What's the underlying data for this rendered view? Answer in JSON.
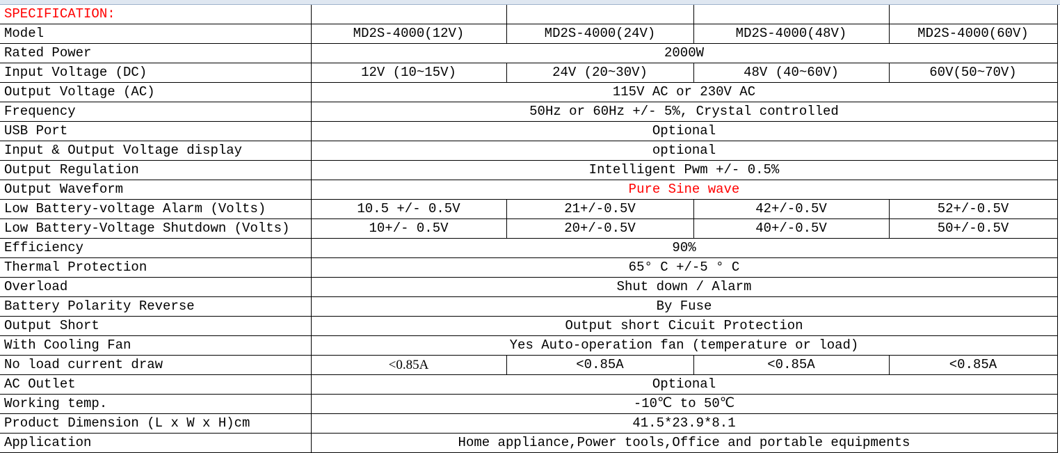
{
  "title": "SPECIFICATION:",
  "colors": {
    "title": "#ff0000",
    "highlight": "#ff0000",
    "grid": "#000000",
    "header_strip": "#dfe7f1"
  },
  "rows": [
    {
      "label": "Model",
      "values": [
        "MD2S-4000(12V)",
        "MD2S-4000(24V)",
        "MD2S-4000(48V)",
        "MD2S-4000(60V)"
      ]
    },
    {
      "label": "Rated Power",
      "value": "2000W"
    },
    {
      "label": "Input Voltage (DC)",
      "values": [
        "12V (10~15V)",
        "24V (20~30V)",
        "48V (40~60V)",
        "60V(50~70V)"
      ]
    },
    {
      "label": "Output Voltage (AC)",
      "value": "115V AC or 230V AC"
    },
    {
      "label": "Frequency",
      "value": "50Hz or 60Hz +/- 5%, Crystal controlled"
    },
    {
      "label": "USB Port",
      "value": "Optional"
    },
    {
      "label": "Input & Output Voltage display",
      "value": "optional"
    },
    {
      "label": "Output Regulation",
      "value": "Intelligent Pwm +/- 0.5%"
    },
    {
      "label": "Output Waveform",
      "value": "Pure Sine wave",
      "highlight": true
    },
    {
      "label": "Low Battery-voltage Alarm (Volts)",
      "values": [
        "10.5 +/- 0.5V",
        "21+/-0.5V",
        "42+/-0.5V",
        "52+/-0.5V"
      ]
    },
    {
      "label": "Low Battery-Voltage Shutdown (Volts)",
      "values": [
        "10+/- 0.5V",
        "20+/-0.5V",
        "40+/-0.5V",
        "50+/-0.5V"
      ]
    },
    {
      "label": "Efficiency",
      "value": "90%"
    },
    {
      "label": "Thermal Protection",
      "value": "65° C +/-5 ° C"
    },
    {
      "label": "Overload",
      "value": "Shut down / Alarm"
    },
    {
      "label": "Battery Polarity Reverse",
      "value": "By Fuse"
    },
    {
      "label": "Output Short",
      "value": "Output short Cicuit Protection"
    },
    {
      "label": "With Cooling Fan",
      "value": "Yes Auto-operation fan (temperature or load)"
    },
    {
      "label": "No load current draw",
      "values": [
        "<0.85A",
        "<0.85A",
        "<0.85A",
        "<0.85A"
      ]
    },
    {
      "label": "AC Outlet",
      "value": "Optional"
    },
    {
      "label": "Working temp.",
      "value": "-10℃ to 50℃"
    },
    {
      "label": "Product Dimension (L x W x H)cm",
      "value": "41.5*23.9*8.1"
    },
    {
      "label": "Application",
      "value": "Home appliance,Power tools,Office and portable equipments"
    }
  ]
}
